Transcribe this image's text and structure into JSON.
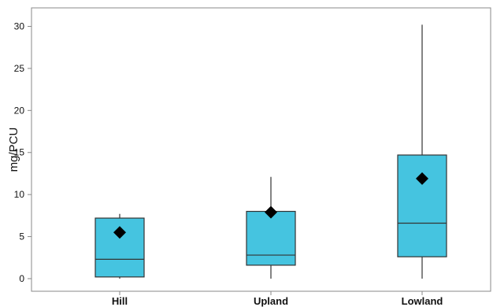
{
  "chart_data": {
    "type": "box",
    "ylabel": "mg/PCU",
    "xlabel": "",
    "title": "",
    "ylim": [
      -1.5,
      32.2
    ],
    "yticks": [
      0,
      5,
      10,
      15,
      20,
      25,
      30
    ],
    "categories": [
      "Hill",
      "Upland",
      "Lowland"
    ],
    "boxes": [
      {
        "name": "Hill",
        "min": 0.0,
        "q1": 0.2,
        "median": 2.3,
        "q3": 7.2,
        "max": 7.7,
        "mean": 5.5
      },
      {
        "name": "Upland",
        "min": 0.0,
        "q1": 1.6,
        "median": 2.8,
        "q3": 8.0,
        "max": 12.1,
        "mean": 7.9
      },
      {
        "name": "Lowland",
        "min": 0.0,
        "q1": 2.6,
        "median": 6.6,
        "q3": 14.7,
        "max": 30.2,
        "mean": 11.9
      }
    ],
    "grid": false,
    "legend": "none",
    "colors": {
      "box_fill": "#45c4e0",
      "box_stroke": "#333333",
      "mean_marker": "#000000",
      "frame": "#888888"
    }
  }
}
